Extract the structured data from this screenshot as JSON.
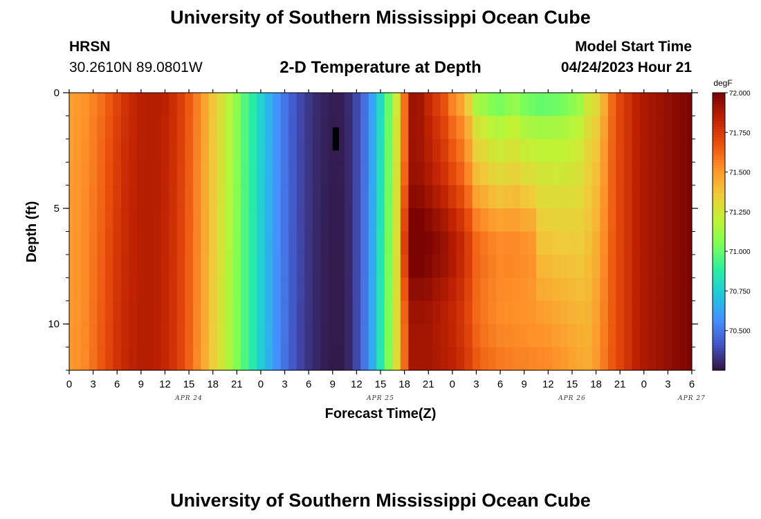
{
  "header": {
    "title": "University of Southern Mississippi Ocean Cube",
    "station": "HRSN",
    "coords": "30.2610N  89.0801W",
    "chart_title": "2-D Temperature at Depth",
    "model_label": "Model Start Time",
    "model_time": "04/24/2023 Hour 21"
  },
  "footer": {
    "title": "University of Southern Mississippi Ocean Cube"
  },
  "colors": {
    "palette": [
      "#30123b",
      "#4454c4",
      "#4490fe",
      "#1fc8de",
      "#29efa2",
      "#7cfe57",
      "#c2f234",
      "#f1ca3a",
      "#fe922a",
      "#ea4f0d",
      "#be2102",
      "#7a0403"
    ]
  },
  "chart_data": {
    "type": "heatmap",
    "title": "2-D Temperature at Depth",
    "xlabel": "Forecast Time(Z)",
    "ylabel": "Depth (ft)",
    "x_ticks": [
      "0",
      "3",
      "6",
      "9",
      "12",
      "15",
      "18",
      "21",
      "0",
      "3",
      "6",
      "9",
      "12",
      "15",
      "18",
      "21",
      "0",
      "3",
      "6",
      "9",
      "12",
      "15",
      "18",
      "21",
      "0",
      "3",
      "6"
    ],
    "x_day_labels": [
      "APR 24",
      "APR 25",
      "APR 26",
      "APR 27"
    ],
    "x_day_label_hours": [
      15,
      39,
      63,
      78
    ],
    "x_range_hours": [
      0,
      78
    ],
    "y_range": [
      0,
      12
    ],
    "y_ticks": [
      0,
      5,
      10
    ],
    "y_minor_step": 1,
    "colorbar": {
      "unit": "degF",
      "range": [
        70.25,
        72.0
      ],
      "tick_values": [
        72.0,
        71.75,
        71.5,
        71.25,
        71.0,
        70.75,
        70.5
      ],
      "tick_labels": [
        "72.000",
        "71.750",
        "71.500",
        "71.250",
        "71.000",
        "70.750",
        "70.500"
      ]
    },
    "depths": [
      0.5,
      1.5,
      2.5,
      3.5,
      4.5,
      5.5,
      6.5,
      7.5,
      8.5,
      9.5,
      10.5,
      11.5
    ],
    "time_hours_step": 1,
    "surface_temps": [
      71.48,
      71.5,
      71.52,
      71.56,
      71.6,
      71.66,
      71.72,
      71.78,
      71.82,
      71.85,
      71.86,
      71.86,
      71.84,
      71.8,
      71.74,
      71.66,
      71.57,
      71.47,
      71.38,
      71.28,
      71.18,
      71.08,
      70.97,
      70.87,
      70.77,
      70.67,
      70.58,
      70.5,
      70.43,
      70.38,
      70.34,
      70.31,
      70.29,
      70.28,
      70.28,
      70.31,
      70.38,
      70.48,
      70.62,
      70.8,
      71.0,
      71.25,
      71.6,
      71.92,
      71.9,
      71.82,
      71.75,
      71.68,
      71.56,
      71.48,
      71.35,
      71.15,
      71.12,
      71.06,
      71.04,
      71.08,
      71.1,
      71.04,
      71.02,
      71.0,
      71.01,
      71.02,
      71.04,
      71.08,
      71.12,
      71.25,
      71.3,
      71.45,
      71.62,
      71.72,
      71.78,
      71.84,
      71.88,
      71.9,
      71.92,
      71.94,
      71.96,
      71.98,
      72.0
    ],
    "deep_temps": [
      71.5,
      71.52,
      71.55,
      71.6,
      71.66,
      71.72,
      71.78,
      71.82,
      71.84,
      71.86,
      71.86,
      71.85,
      71.82,
      71.78,
      71.72,
      71.64,
      71.55,
      71.45,
      71.36,
      71.26,
      71.16,
      71.06,
      70.96,
      70.86,
      70.76,
      70.66,
      70.57,
      70.49,
      70.42,
      70.37,
      70.33,
      70.3,
      70.28,
      70.27,
      70.27,
      70.3,
      70.38,
      70.5,
      70.65,
      70.85,
      71.05,
      71.3,
      71.62,
      71.9,
      71.9,
      71.9,
      71.88,
      71.86,
      71.84,
      71.8,
      71.74,
      71.66,
      71.62,
      71.6,
      71.58,
      71.57,
      71.56,
      71.56,
      71.55,
      71.55,
      71.54,
      71.52,
      71.5,
      71.48,
      71.46,
      71.45,
      71.5,
      71.58,
      71.66,
      71.72,
      71.78,
      71.84,
      71.88,
      71.9,
      71.92,
      71.94,
      71.96,
      71.98,
      72.0
    ],
    "mid_depth_warm_anomaly_degF": 0.12
  }
}
